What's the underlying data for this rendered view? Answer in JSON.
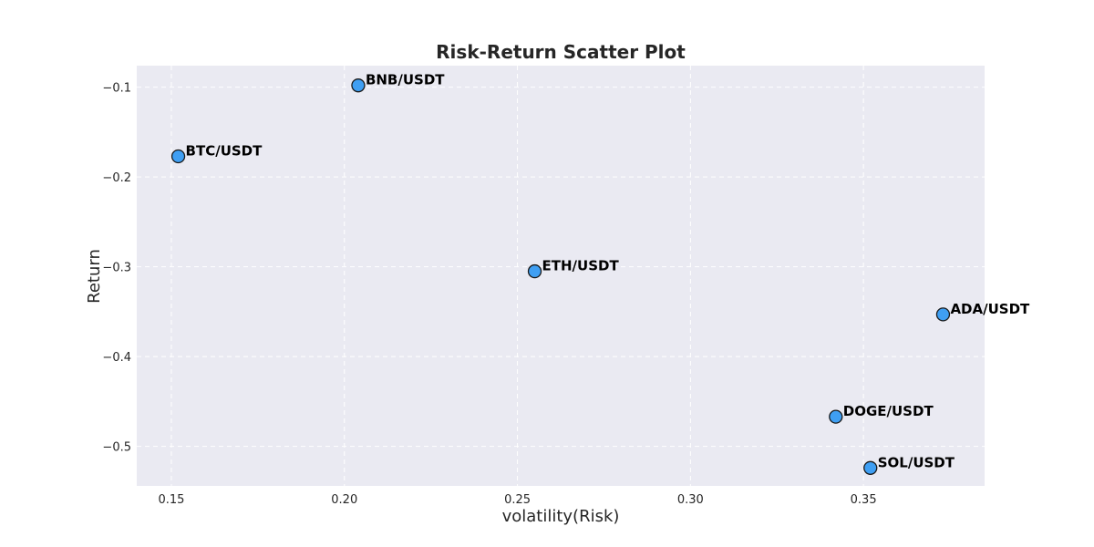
{
  "chart_data": {
    "type": "scatter",
    "title": "Risk-Return Scatter Plot",
    "xlabel": "volatility(Risk)",
    "ylabel": "Return",
    "xlim": [
      0.14,
      0.385
    ],
    "ylim": [
      -0.544,
      -0.076
    ],
    "xticks": [
      0.15,
      0.2,
      0.25,
      0.3,
      0.35
    ],
    "xtick_labels": [
      "0.15",
      "0.20",
      "0.25",
      "0.30",
      "0.35"
    ],
    "yticks": [
      -0.1,
      -0.2,
      -0.3,
      -0.4,
      -0.5
    ],
    "ytick_labels": [
      "−0.1",
      "−0.2",
      "−0.3",
      "−0.4",
      "−0.5"
    ],
    "grid": true,
    "colors": {
      "point_fill": "#3f9ff3",
      "point_edge": "#1a1a1a",
      "plot_background": "#eaeaf2"
    },
    "points": [
      {
        "label": "BNB/USDT",
        "x": 0.204,
        "y": -0.098
      },
      {
        "label": "BTC/USDT",
        "x": 0.152,
        "y": -0.177
      },
      {
        "label": "ETH/USDT",
        "x": 0.255,
        "y": -0.305
      },
      {
        "label": "ADA/USDT",
        "x": 0.373,
        "y": -0.353
      },
      {
        "label": "DOGE/USDT",
        "x": 0.342,
        "y": -0.467
      },
      {
        "label": "SOL/USDT",
        "x": 0.352,
        "y": -0.524
      }
    ]
  }
}
